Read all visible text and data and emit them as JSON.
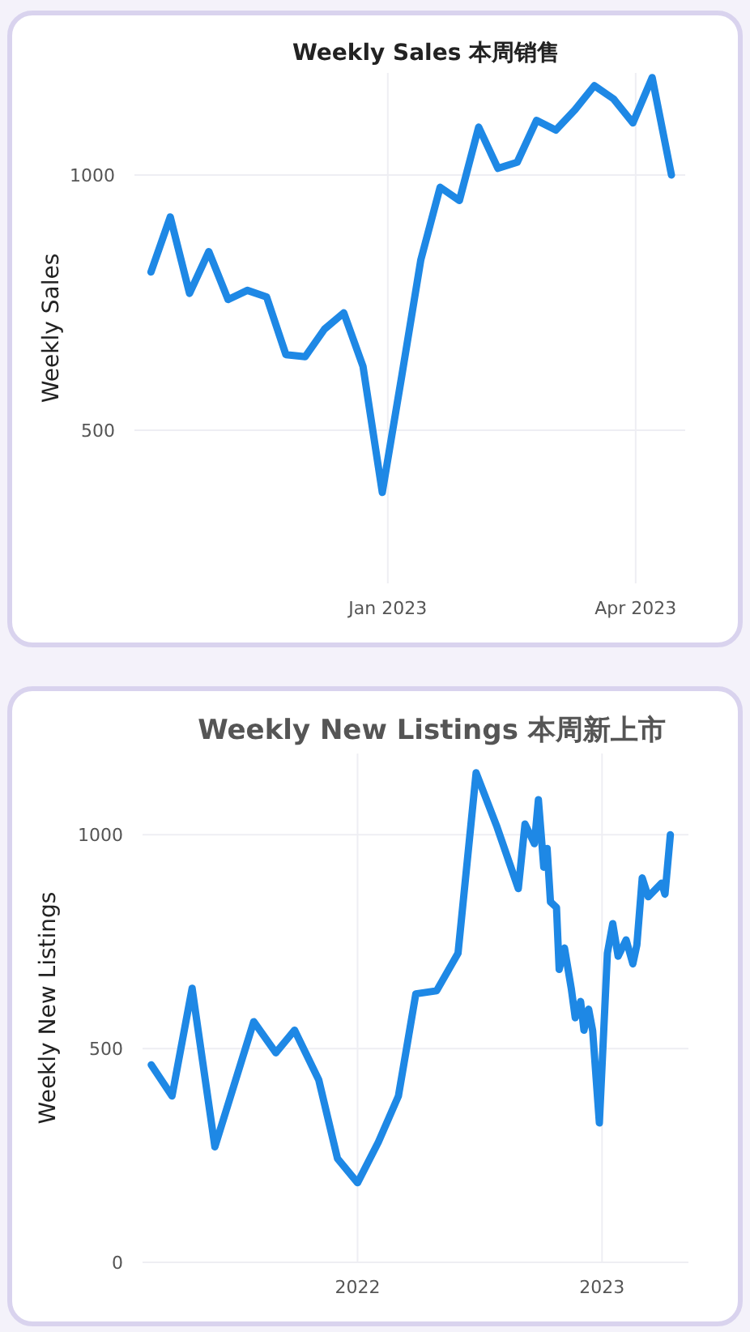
{
  "chart_data": [
    {
      "type": "line",
      "title": "Weekly Sales 本周销售",
      "ylabel": "Weekly Sales",
      "grid": true,
      "marker": "none",
      "line_style": "solid",
      "x": [
        "2022-10-07",
        "2022-10-14",
        "2022-10-21",
        "2022-10-28",
        "2022-11-04",
        "2022-11-11",
        "2022-11-18",
        "2022-11-25",
        "2022-12-02",
        "2022-12-09",
        "2022-12-16",
        "2022-12-23",
        "2022-12-30",
        "2023-01-06",
        "2023-01-13",
        "2023-01-20",
        "2023-01-27",
        "2023-02-03",
        "2023-02-10",
        "2023-02-17",
        "2023-02-24",
        "2023-03-03",
        "2023-03-10",
        "2023-03-17",
        "2023-03-24",
        "2023-03-31",
        "2023-04-07",
        "2023-04-14"
      ],
      "series": [
        {
          "color": "#1e88e5",
          "values": [
            810,
            918,
            768,
            850,
            756,
            774,
            761,
            648,
            644,
            698,
            730,
            625,
            378,
            604,
            834,
            976,
            950,
            1094,
            1013,
            1025,
            1107,
            1088,
            1128,
            1175,
            1149,
            1102,
            1191,
            1000
          ]
        }
      ],
      "xlim": [
        "2022-10-01",
        "2023-04-19"
      ],
      "xticks": [
        {
          "value": "2023-01-01",
          "label": "Jan 2023"
        },
        {
          "value": "2023-04-01",
          "label": "Apr 2023"
        }
      ],
      "ylim": [
        200,
        1200
      ],
      "yticks": [
        500,
        1000
      ]
    },
    {
      "type": "line",
      "title": "Weekly New Listings  本周新上市",
      "ylabel": "Weekly New Listings",
      "grid": true,
      "marker": "none",
      "line_style": "solid",
      "x": [
        "2021-02-27",
        "2021-03-30",
        "2021-04-29",
        "2021-06-02",
        "2021-07-30",
        "2021-09-01",
        "2021-09-29",
        "2021-11-04",
        "2021-12-02",
        "2022-01-01",
        "2022-02-01",
        "2022-03-03",
        "2022-03-29",
        "2022-04-29",
        "2022-05-31",
        "2022-06-27",
        "2022-07-28",
        "2022-08-29",
        "2022-09-08",
        "2022-09-22",
        "2022-09-28",
        "2022-10-06",
        "2022-10-11",
        "2022-10-16",
        "2022-10-25",
        "2022-10-29",
        "2022-11-06",
        "2022-11-16",
        "2022-11-22",
        "2022-11-30",
        "2022-12-05",
        "2022-12-12",
        "2022-12-18",
        "2022-12-28",
        "2023-01-09",
        "2023-01-17",
        "2023-01-25",
        "2023-02-06",
        "2023-02-16",
        "2023-02-22",
        "2023-03-02",
        "2023-03-11",
        "2023-03-31",
        "2023-04-05",
        "2023-04-13"
      ],
      "series": [
        {
          "color": "#1e88e5",
          "values": [
            462,
            389,
            641,
            270,
            563,
            490,
            543,
            427,
            243,
            186,
            281,
            389,
            628,
            635,
            723,
            1145,
            1019,
            874,
            1025,
            979,
            1082,
            924,
            968,
            843,
            830,
            685,
            735,
            641,
            572,
            610,
            543,
            592,
            542,
            326,
            723,
            792,
            716,
            754,
            698,
            742,
            899,
            855,
            887,
            861,
            1000
          ]
        }
      ],
      "xlim": [
        "2021-02-14",
        "2023-05-10"
      ],
      "xticks": [
        {
          "value": "2022-01-01",
          "label": "2022"
        },
        {
          "value": "2023-01-01",
          "label": "2023"
        }
      ],
      "ylim": [
        0,
        1190
      ],
      "yticks": [
        0,
        500,
        1000
      ]
    }
  ]
}
